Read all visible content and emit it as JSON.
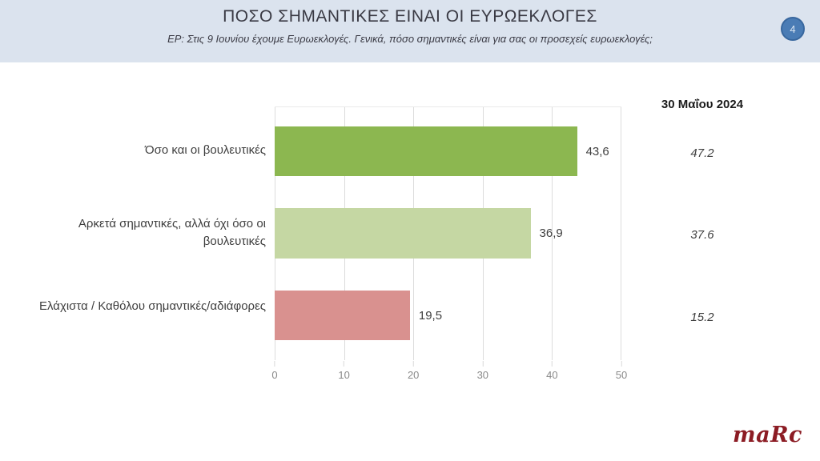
{
  "header": {
    "title": "ΠΟΣΟ ΣΗΜΑΝΤΙΚΕΣ ΕΙΝΑΙ ΟΙ ΕΥΡΩΕΚΛΟΓΕΣ",
    "subtitle": "EP: Στις 9 Ιουνίου έχουμε Ευρωεκλογές. Γενικά, πόσο σημαντικές είναι για σας οι προσεχείς ευρωεκλογές;",
    "page_number": "4",
    "background_color": "#dbe3ee",
    "badge_color": "#4a7cb5"
  },
  "chart_data": {
    "type": "bar",
    "orientation": "horizontal",
    "title": "ΠΟΣΟ ΣΗΜΑΝΤΙΚΕΣ ΕΙΝΑΙ ΟΙ ΕΥΡΩΕΚΛΟΓΕΣ",
    "categories": [
      "Όσο και οι βουλευτικές",
      "Αρκετά σημαντικές, αλλά όχι όσο οι βουλευτικές",
      "Ελάχιστα / Καθόλου σημαντικές/αδιάφορες"
    ],
    "categories_display": [
      "Όσο και οι βουλευτικές",
      "Αρκετά σημαντικές, αλλά όχι\nόσο οι βουλευτικές",
      "Ελάχιστα / Καθόλου\nσημαντικές/αδιάφορες"
    ],
    "series": [
      {
        "name": "current",
        "values": [
          43.6,
          36.9,
          19.5
        ],
        "labels": [
          "43,6",
          "36,9",
          "19,5"
        ],
        "colors": [
          "#8cb750",
          "#c5d7a3",
          "#d9918f"
        ]
      },
      {
        "name": "30 Μαΐου 2024",
        "values": [
          47.2,
          37.6,
          15.2
        ],
        "labels": [
          "47.2",
          "37.6",
          "15.2"
        ]
      }
    ],
    "comparison_column_header": "30 Μαΐου 2024",
    "xlim": [
      0,
      50
    ],
    "x_ticks": [
      "0",
      "10",
      "20",
      "30",
      "40",
      "50"
    ],
    "grid": "vertical-light-gray",
    "legend": "none"
  },
  "footer": {
    "logo_text": "maRc",
    "logo_color": "#8c1c24"
  }
}
